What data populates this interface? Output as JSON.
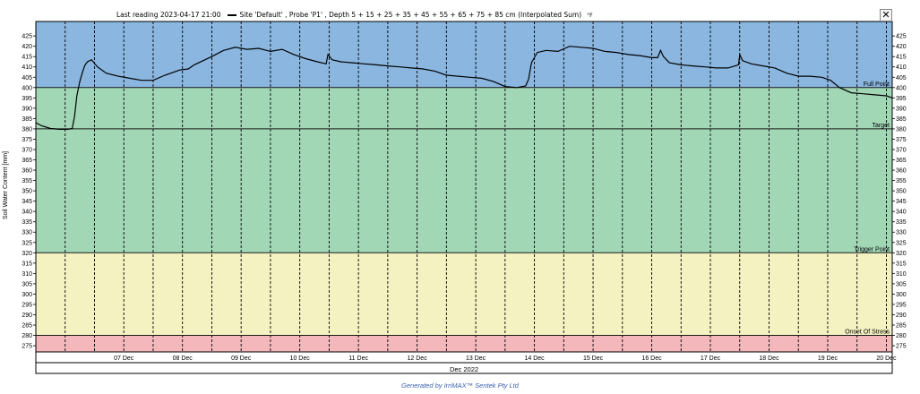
{
  "header": {
    "last_reading": "Last reading 2023-04-17 21:00",
    "series_label": "Site 'Default' , Probe 'P1' , Depth 5 + 15 + 25 + 35 + 45 + 55 + 65 + 75 + 85 cm (Interpolated Sum)",
    "temp_unit": "°F",
    "close_label": "✕"
  },
  "footer": "Generated by IrriMAX™ Sentek Pty Ltd",
  "colors": {
    "band_top": "#8ab6e0",
    "band_green": "#a2d7b6",
    "band_yellow": "#f5f2c2",
    "band_red": "#f4b8bc",
    "line": "#000000",
    "footer_text": "#3a62b0"
  },
  "chart_data": {
    "type": "line",
    "ylabel": "Soil Water Content [mm]",
    "xlabel": "Dec 2022",
    "ylim": [
      272,
      432
    ],
    "y_ticks": [
      275,
      280,
      285,
      290,
      295,
      300,
      305,
      310,
      315,
      320,
      325,
      330,
      335,
      340,
      345,
      350,
      355,
      360,
      365,
      370,
      375,
      380,
      385,
      390,
      395,
      400,
      405,
      410,
      415,
      420,
      425
    ],
    "x_unit": "days (Dec 2022)",
    "xlim": [
      6.0,
      20.6
    ],
    "x_ticks": [
      {
        "x": 7,
        "label": "07 Dec"
      },
      {
        "x": 8,
        "label": "08 Dec"
      },
      {
        "x": 9,
        "label": "09 Dec"
      },
      {
        "x": 10,
        "label": "10 Dec"
      },
      {
        "x": 11,
        "label": "11 Dec"
      },
      {
        "x": 12,
        "label": "12 Dec"
      },
      {
        "x": 13,
        "label": "13 Dec"
      },
      {
        "x": 14,
        "label": "14 Dec"
      },
      {
        "x": 15,
        "label": "15 Dec"
      },
      {
        "x": 16,
        "label": "16 Dec"
      },
      {
        "x": 17,
        "label": "17 Dec"
      },
      {
        "x": 18,
        "label": "18 Dec"
      },
      {
        "x": 19,
        "label": "19 Dec"
      },
      {
        "x": 20,
        "label": "20 Dec"
      }
    ],
    "grid": "vertical dashed at 12-hour intervals",
    "bands": [
      {
        "name": "Full Point",
        "from": 400,
        "to": 432,
        "color": "#8ab6e0"
      },
      {
        "name": "Target",
        "from": 320,
        "to": 400,
        "color": "#a2d7b6"
      },
      {
        "name": "Trigger Point",
        "from": 280,
        "to": 320,
        "color": "#f5f2c2"
      },
      {
        "name": "Onset Of Stress",
        "from": 272,
        "to": 280,
        "color": "#f4b8bc"
      }
    ],
    "reference_lines": [
      {
        "label": "Full Point",
        "y": 400
      },
      {
        "label": "Target",
        "y": 380
      },
      {
        "label": "Trigger Point",
        "y": 320
      },
      {
        "label": "Onset Of Stress",
        "y": 280
      }
    ],
    "series": [
      {
        "x": [
          6.0,
          6.1,
          6.25,
          6.4,
          6.55,
          6.62,
          6.66,
          6.7,
          6.75,
          6.8,
          6.84,
          6.88,
          6.95,
          7.05,
          7.2,
          7.4,
          7.6,
          7.8,
          8.0,
          8.2,
          8.4,
          8.45,
          8.6,
          8.7,
          8.85,
          9.0,
          9.2,
          9.4,
          9.6,
          9.8,
          10.0,
          10.2,
          10.4,
          10.6,
          10.8,
          10.95,
          10.98,
          11.05,
          11.2,
          11.4,
          11.6,
          11.8,
          12.0,
          12.2,
          12.4,
          12.6,
          12.8,
          13.0,
          13.2,
          13.4,
          13.6,
          13.8,
          14.0,
          14.2,
          14.35,
          14.4,
          14.45,
          14.55,
          14.7,
          14.9,
          15.1,
          15.3,
          15.5,
          15.7,
          15.9,
          16.1,
          16.3,
          16.5,
          16.6,
          16.65,
          16.7,
          16.8,
          17.0,
          17.2,
          17.4,
          17.6,
          17.8,
          17.98,
          18.0,
          18.05,
          18.2,
          18.4,
          18.6,
          18.8,
          19.0,
          19.2,
          19.4,
          19.55,
          19.7,
          19.9,
          20.1,
          20.3,
          20.5,
          20.6
        ],
        "y": [
          383,
          381.5,
          380.2,
          379.8,
          379.8,
          380.2,
          386,
          396,
          403,
          408,
          411,
          412.5,
          413.5,
          410,
          407,
          405.5,
          404.5,
          403.5,
          403.5,
          406,
          408,
          408.5,
          409,
          411,
          413,
          415,
          418,
          419.5,
          418.5,
          419,
          417.5,
          418.5,
          416,
          414,
          412.5,
          411.5,
          416,
          413.5,
          412.5,
          412,
          411.5,
          411,
          410.5,
          410,
          409.5,
          409,
          408,
          406,
          405.5,
          405,
          404.5,
          403,
          400.5,
          400,
          400.8,
          404,
          412,
          417,
          418,
          417.5,
          420,
          419.5,
          419,
          417.5,
          417,
          416,
          415.5,
          414.5,
          414.5,
          418,
          415,
          412,
          411,
          410.5,
          410,
          409.5,
          409.5,
          411,
          416,
          413,
          411.5,
          410.5,
          409.5,
          407,
          405.5,
          405.5,
          405,
          403.5,
          400,
          397.5,
          397,
          396.5,
          396,
          395
        ]
      }
    ]
  }
}
